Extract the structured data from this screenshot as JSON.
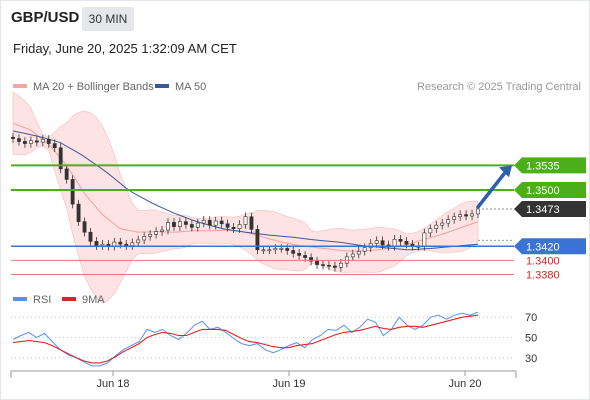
{
  "header": {
    "symbol": "GBP/USD",
    "timeframe": "30 MIN",
    "datetime": "Friday, June 20, 2025 1:32:09 AM CET"
  },
  "legend": {
    "ma20_label": "MA 20 + Bollinger Bands",
    "ma50_label": "MA 50",
    "credit": "Research © 2025 Trading Central",
    "rsi_label": "RSI",
    "nine_ma_label": "9MA"
  },
  "colors": {
    "ma20": "#f4a6a6",
    "bollinger_fill": "#fde3e3",
    "ma50": "#3b5998",
    "support_line": "#3b73d4",
    "resistance": "#4caf1a",
    "red_levels": "#e8777a",
    "rsi": "#5b8ef0",
    "nine_ma": "#e02424",
    "arrow": "#2b5fb0",
    "current_price": "#333333"
  },
  "chart_data": [
    {
      "type": "candlestick",
      "title": "GBP/USD",
      "x_ticks": [
        "Jun 18",
        "Jun 19",
        "Jun 20"
      ],
      "current_price": 1.3473,
      "levels": [
        {
          "value": 1.3535,
          "label": "1.3535",
          "kind": "resistance"
        },
        {
          "value": 1.35,
          "label": "1.3500",
          "kind": "resistance"
        },
        {
          "value": 1.3473,
          "label": "1.3473",
          "kind": "current"
        },
        {
          "value": 1.342,
          "label": "1.3420",
          "kind": "pivot"
        },
        {
          "value": 1.34,
          "label": "1.3400",
          "kind": "support"
        },
        {
          "value": 1.338,
          "label": "1.3380",
          "kind": "support"
        }
      ],
      "ylim": [
        1.3365,
        1.3635
      ],
      "series": [
        {
          "name": "Price",
          "values": [
            1.3573,
            1.3569,
            1.3566,
            1.357,
            1.3568,
            1.3572,
            1.3566,
            1.356,
            1.353,
            1.3515,
            1.348,
            1.3455,
            1.344,
            1.3427,
            1.3421,
            1.3423,
            1.342,
            1.3426,
            1.3423,
            1.3421,
            1.3425,
            1.3429,
            1.3434,
            1.3437,
            1.3441,
            1.3443,
            1.3454,
            1.3448,
            1.3455,
            1.3451,
            1.3447,
            1.3453,
            1.3457,
            1.345,
            1.3456,
            1.3452,
            1.3447,
            1.3445,
            1.3451,
            1.3462,
            1.3444,
            1.3415,
            1.3415,
            1.3415,
            1.3417,
            1.3417,
            1.3414,
            1.341,
            1.3407,
            1.3404,
            1.3399,
            1.3394,
            1.3393,
            1.3392,
            1.339,
            1.3396,
            1.3405,
            1.3409,
            1.3413,
            1.3418,
            1.3424,
            1.3428,
            1.3422,
            1.342,
            1.343,
            1.3427,
            1.3423,
            1.342,
            1.342,
            1.3439,
            1.3445,
            1.345,
            1.3453,
            1.3458,
            1.3462,
            1.3465,
            1.3463,
            1.3466,
            1.3473
          ]
        },
        {
          "name": "MA 20",
          "values": [
            1.3595,
            1.3585,
            1.3565,
            1.3535,
            1.3495,
            1.3465,
            1.3445,
            1.344,
            1.3441,
            1.344,
            1.3442,
            1.3442,
            1.3443,
            1.344,
            1.3433,
            1.3426,
            1.3421,
            1.3418,
            1.3415,
            1.3413,
            1.3414,
            1.3417,
            1.3422,
            1.343,
            1.3437,
            1.3446,
            1.3455
          ]
        },
        {
          "name": "MA 50",
          "values": [
            1.3584,
            1.3577,
            1.3568,
            1.3549,
            1.3526,
            1.3499,
            1.3481,
            1.3466,
            1.3454,
            1.3445,
            1.344,
            1.3436,
            1.3433,
            1.3429,
            1.3426,
            1.3421,
            1.3418,
            1.3415,
            1.3417,
            1.342,
            1.3423
          ]
        }
      ]
    },
    {
      "type": "line",
      "title": "RSI",
      "y_ticks": [
        "70",
        "50",
        "30"
      ],
      "ylim": [
        18,
        82
      ],
      "series": [
        {
          "name": "RSI",
          "values": [
            48,
            52,
            55,
            50,
            54,
            46,
            38,
            33,
            30,
            26,
            22,
            22,
            25,
            32,
            38,
            42,
            46,
            58,
            55,
            58,
            52,
            48,
            54,
            62,
            66,
            58,
            60,
            55,
            49,
            44,
            42,
            44,
            38,
            35,
            38,
            42,
            45,
            40,
            48,
            52,
            58,
            57,
            62,
            55,
            60,
            68,
            65,
            52,
            58,
            70,
            62,
            58,
            62,
            70,
            72,
            68,
            72,
            74,
            72,
            75
          ]
        },
        {
          "name": "9MA",
          "values": [
            45,
            46,
            47,
            46,
            45,
            42,
            38,
            34,
            30,
            27,
            25,
            25,
            27,
            31,
            36,
            40,
            44,
            50,
            53,
            55,
            54,
            52,
            52,
            55,
            58,
            58,
            58,
            57,
            53,
            49,
            46,
            45,
            43,
            41,
            40,
            40,
            42,
            43,
            44,
            47,
            50,
            53,
            55,
            56,
            57,
            59,
            61,
            59,
            58,
            60,
            61,
            61,
            60,
            62,
            64,
            66,
            68,
            70,
            71,
            72
          ]
        }
      ]
    }
  ]
}
